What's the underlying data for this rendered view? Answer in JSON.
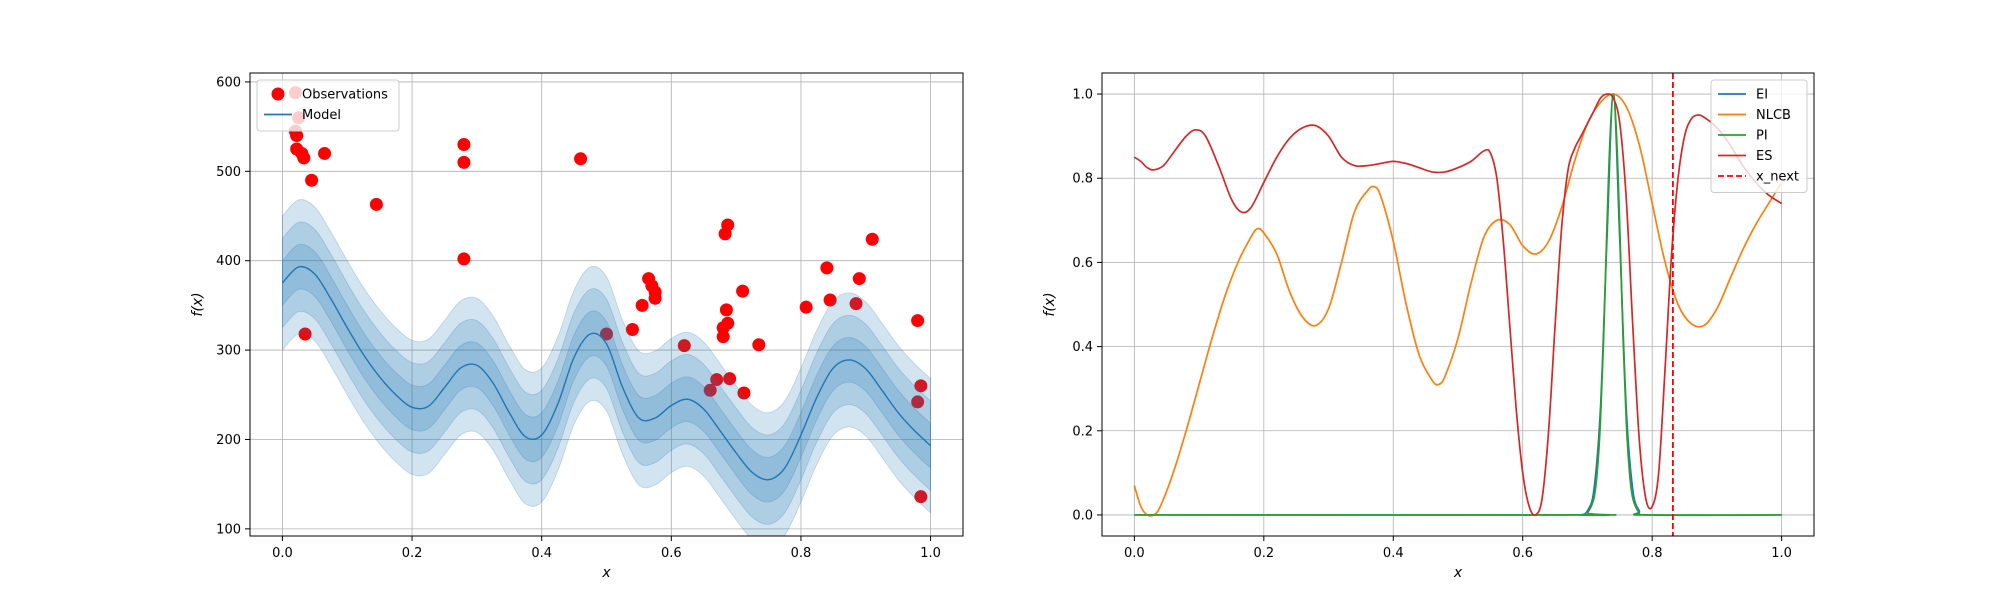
{
  "chart_data": [
    {
      "type": "scatter",
      "xlabel": "x",
      "ylabel": "f(x)",
      "xlim": [
        -0.05,
        1.05
      ],
      "ylim": [
        92,
        610
      ],
      "xticks": [
        "0.0",
        "0.2",
        "0.4",
        "0.6",
        "0.8",
        "1.0"
      ],
      "yticks": [
        "100",
        "200",
        "300",
        "400",
        "500",
        "600"
      ],
      "grid": true,
      "legend_position": "upper-left",
      "series": [
        {
          "name": "Observations",
          "kind": "scatter",
          "color": "#ff0000",
          "points": [
            [
              0.02,
              588
            ],
            [
              0.025,
              560
            ],
            [
              0.02,
              545
            ],
            [
              0.022,
              540
            ],
            [
              0.03,
              520
            ],
            [
              0.033,
              515
            ],
            [
              0.022,
              525
            ],
            [
              0.065,
              520
            ],
            [
              0.045,
              490
            ],
            [
              0.035,
              318
            ],
            [
              0.145,
              463
            ],
            [
              0.28,
              530
            ],
            [
              0.28,
              510
            ],
            [
              0.28,
              402
            ],
            [
              0.46,
              514
            ],
            [
              0.5,
              318
            ],
            [
              0.54,
              323
            ],
            [
              0.555,
              350
            ],
            [
              0.565,
              380
            ],
            [
              0.57,
              372
            ],
            [
              0.575,
              365
            ],
            [
              0.575,
              358
            ],
            [
              0.62,
              305
            ],
            [
              0.66,
              255
            ],
            [
              0.67,
              267
            ],
            [
              0.68,
              315
            ],
            [
              0.68,
              325
            ],
            [
              0.683,
              430
            ],
            [
              0.687,
              440
            ],
            [
              0.685,
              345
            ],
            [
              0.687,
              330
            ],
            [
              0.69,
              268
            ],
            [
              0.71,
              366
            ],
            [
              0.712,
              252
            ],
            [
              0.735,
              306
            ],
            [
              0.808,
              348
            ],
            [
              0.84,
              392
            ],
            [
              0.845,
              356
            ],
            [
              0.885,
              352
            ],
            [
              0.89,
              380
            ],
            [
              0.91,
              424
            ],
            [
              0.98,
              333
            ],
            [
              0.985,
              260
            ],
            [
              0.98,
              242
            ],
            [
              0.985,
              136
            ]
          ]
        },
        {
          "name": "Model",
          "kind": "line",
          "color": "#1f77b4",
          "band_sigma": [
            25,
            50,
            75
          ],
          "x": [
            0.0,
            0.025,
            0.05,
            0.075,
            0.1,
            0.125,
            0.15,
            0.175,
            0.2,
            0.225,
            0.25,
            0.275,
            0.3,
            0.325,
            0.35,
            0.375,
            0.4,
            0.425,
            0.45,
            0.475,
            0.5,
            0.525,
            0.55,
            0.575,
            0.6,
            0.625,
            0.65,
            0.675,
            0.7,
            0.725,
            0.75,
            0.775,
            0.8,
            0.825,
            0.85,
            0.875,
            0.9,
            0.925,
            0.95,
            0.975,
            1.0
          ],
          "y": [
            375,
            393,
            385,
            357,
            325,
            295,
            270,
            250,
            236,
            237,
            258,
            280,
            283,
            263,
            230,
            203,
            205,
            240,
            292,
            318,
            307,
            258,
            224,
            224,
            238,
            245,
            234,
            210,
            185,
            163,
            155,
            168,
            205,
            248,
            280,
            289,
            279,
            255,
            230,
            210,
            193
          ]
        }
      ]
    },
    {
      "type": "line",
      "xlabel": "x",
      "ylabel": "f(x)",
      "xlim": [
        -0.05,
        1.05
      ],
      "ylim": [
        -0.05,
        1.05
      ],
      "xticks": [
        "0.0",
        "0.2",
        "0.4",
        "0.6",
        "0.8",
        "1.0"
      ],
      "yticks": [
        "0.0",
        "0.2",
        "0.4",
        "0.6",
        "0.8",
        "1.0"
      ],
      "grid": true,
      "legend_position": "upper-right",
      "series": [
        {
          "name": "EI",
          "color": "#1f77b4",
          "x": [
            0.0,
            0.68,
            0.69,
            0.7,
            0.71,
            0.72,
            0.73,
            0.74,
            0.75,
            0.76,
            0.77,
            0.78,
            0.79,
            1.0
          ],
          "y": [
            0.0,
            0.0,
            0.0,
            0.01,
            0.06,
            0.25,
            0.65,
            1.0,
            0.65,
            0.25,
            0.06,
            0.01,
            0.0,
            0.0
          ]
        },
        {
          "name": "NLCB",
          "color": "#ff7f0e",
          "x": [
            0.0,
            0.01,
            0.02,
            0.03,
            0.04,
            0.06,
            0.08,
            0.1,
            0.12,
            0.14,
            0.16,
            0.18,
            0.19,
            0.2,
            0.22,
            0.24,
            0.26,
            0.28,
            0.3,
            0.32,
            0.34,
            0.36,
            0.37,
            0.38,
            0.4,
            0.42,
            0.44,
            0.46,
            0.47,
            0.48,
            0.5,
            0.52,
            0.54,
            0.56,
            0.58,
            0.6,
            0.62,
            0.64,
            0.66,
            0.68,
            0.7,
            0.72,
            0.74,
            0.76,
            0.78,
            0.8,
            0.82,
            0.84,
            0.86,
            0.88,
            0.9,
            0.92,
            0.94,
            0.96,
            0.98,
            1.0
          ],
          "y": [
            0.07,
            0.02,
            0.0,
            0.0,
            0.02,
            0.1,
            0.2,
            0.31,
            0.42,
            0.52,
            0.6,
            0.66,
            0.68,
            0.67,
            0.62,
            0.53,
            0.47,
            0.45,
            0.49,
            0.6,
            0.72,
            0.77,
            0.78,
            0.76,
            0.65,
            0.5,
            0.38,
            0.32,
            0.31,
            0.33,
            0.42,
            0.55,
            0.66,
            0.7,
            0.69,
            0.64,
            0.62,
            0.65,
            0.73,
            0.84,
            0.93,
            0.98,
            1.0,
            0.97,
            0.88,
            0.74,
            0.6,
            0.5,
            0.455,
            0.45,
            0.49,
            0.56,
            0.63,
            0.69,
            0.74,
            0.79
          ]
        },
        {
          "name": "PI",
          "color": "#2ca02c",
          "x": [
            0.0,
            0.69,
            0.7,
            0.71,
            0.715,
            0.72,
            0.725,
            0.73,
            0.735,
            0.74,
            0.745,
            0.75,
            0.755,
            0.76,
            0.765,
            0.77,
            0.78,
            0.79,
            1.0
          ],
          "y": [
            0.0,
            0.0,
            0.005,
            0.04,
            0.1,
            0.22,
            0.42,
            0.68,
            0.9,
            1.0,
            0.9,
            0.68,
            0.42,
            0.22,
            0.1,
            0.04,
            0.005,
            0.0,
            0.0
          ]
        },
        {
          "name": "ES",
          "color": "#d62728",
          "x": [
            0.0,
            0.01,
            0.02,
            0.03,
            0.045,
            0.06,
            0.08,
            0.095,
            0.11,
            0.13,
            0.15,
            0.165,
            0.18,
            0.2,
            0.22,
            0.24,
            0.26,
            0.28,
            0.3,
            0.32,
            0.34,
            0.36,
            0.38,
            0.4,
            0.42,
            0.44,
            0.46,
            0.48,
            0.5,
            0.52,
            0.54,
            0.55,
            0.56,
            0.57,
            0.58,
            0.59,
            0.6,
            0.61,
            0.62,
            0.63,
            0.64,
            0.65,
            0.66,
            0.67,
            0.68,
            0.69,
            0.7,
            0.71,
            0.72,
            0.73,
            0.74,
            0.75,
            0.76,
            0.77,
            0.78,
            0.79,
            0.8,
            0.81,
            0.82,
            0.83,
            0.84,
            0.85,
            0.86,
            0.87,
            0.88,
            0.9,
            0.92,
            0.94,
            0.96,
            0.98,
            1.0
          ],
          "y": [
            0.85,
            0.84,
            0.825,
            0.82,
            0.83,
            0.86,
            0.9,
            0.915,
            0.9,
            0.83,
            0.75,
            0.72,
            0.73,
            0.79,
            0.85,
            0.895,
            0.92,
            0.925,
            0.9,
            0.85,
            0.83,
            0.83,
            0.835,
            0.84,
            0.835,
            0.825,
            0.815,
            0.815,
            0.825,
            0.84,
            0.865,
            0.86,
            0.8,
            0.65,
            0.45,
            0.25,
            0.1,
            0.02,
            0.0,
            0.04,
            0.2,
            0.45,
            0.68,
            0.82,
            0.87,
            0.9,
            0.93,
            0.96,
            0.99,
            1.0,
            0.99,
            0.93,
            0.75,
            0.45,
            0.18,
            0.04,
            0.02,
            0.1,
            0.35,
            0.62,
            0.8,
            0.9,
            0.94,
            0.95,
            0.945,
            0.92,
            0.88,
            0.83,
            0.79,
            0.76,
            0.74
          ]
        },
        {
          "name": "x_next",
          "color": "#ff0000",
          "dashed": true,
          "vline": 0.832
        }
      ]
    }
  ]
}
